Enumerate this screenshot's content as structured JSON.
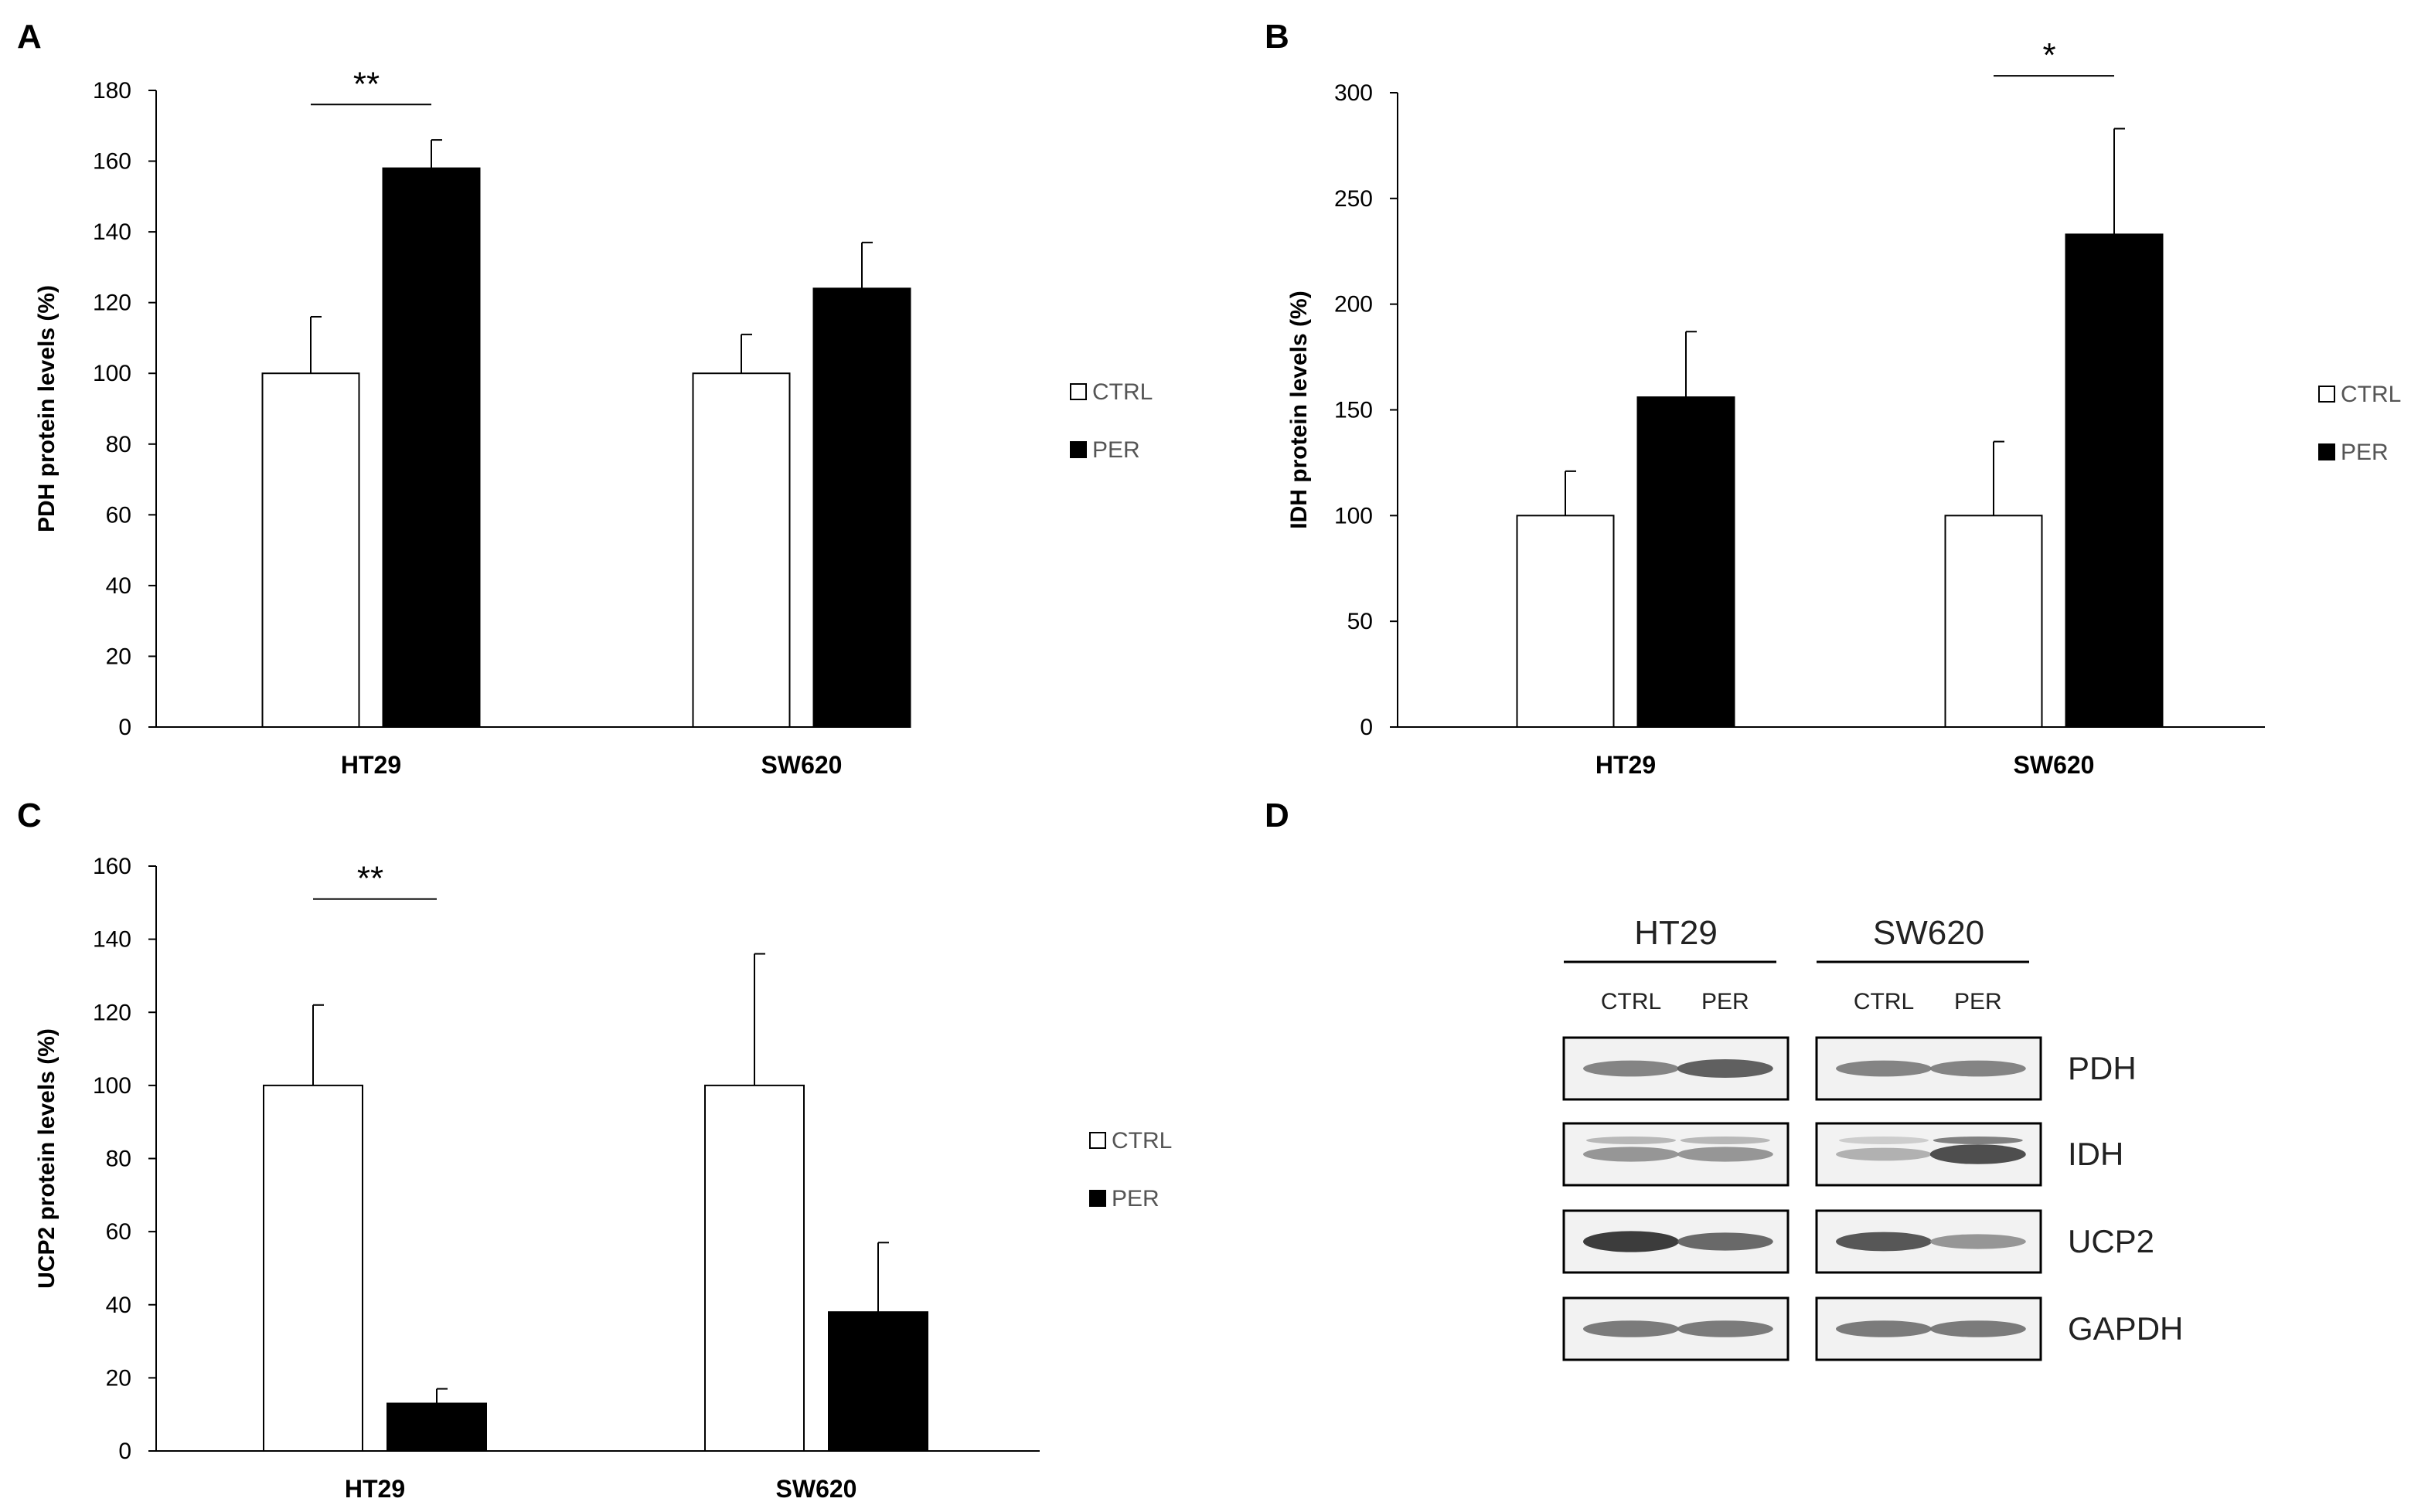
{
  "panels": {
    "A": "A",
    "B": "B",
    "C": "C",
    "D": "D"
  },
  "legend": {
    "ctrl": "CTRL",
    "per": "PER"
  },
  "chart_data": [
    {
      "id": "A",
      "type": "bar",
      "categories": [
        "HT29",
        "SW620"
      ],
      "series": [
        {
          "name": "CTRL",
          "values": [
            100,
            100
          ],
          "errors": [
            16,
            11
          ],
          "color": "#ffffff"
        },
        {
          "name": "PER",
          "values": [
            158,
            124
          ],
          "errors": [
            8,
            13
          ],
          "color": "#000000"
        }
      ],
      "ylabel": "PDH protein levels (%)",
      "ylim": [
        0,
        180
      ],
      "yticks": [
        0,
        20,
        40,
        60,
        80,
        100,
        120,
        140,
        160,
        180
      ],
      "significance": [
        {
          "category": "HT29",
          "label": "**",
          "at": 176
        }
      ]
    },
    {
      "id": "B",
      "type": "bar",
      "categories": [
        "HT29",
        "SW620"
      ],
      "series": [
        {
          "name": "CTRL",
          "values": [
            100,
            100
          ],
          "errors": [
            21,
            35
          ],
          "color": "#ffffff"
        },
        {
          "name": "PER",
          "values": [
            156,
            233
          ],
          "errors": [
            31,
            50
          ],
          "color": "#000000"
        }
      ],
      "ylabel": "IDH protein levels (%)",
      "ylim": [
        0,
        300
      ],
      "yticks": [
        0,
        50,
        100,
        150,
        200,
        250,
        300
      ],
      "significance": [
        {
          "category": "SW620",
          "label": "*",
          "at": 308
        }
      ]
    },
    {
      "id": "C",
      "type": "bar",
      "categories": [
        "HT29",
        "SW620"
      ],
      "series": [
        {
          "name": "CTRL",
          "values": [
            100,
            100
          ],
          "errors": [
            22,
            36
          ],
          "color": "#ffffff"
        },
        {
          "name": "PER",
          "values": [
            13,
            38
          ],
          "errors": [
            4,
            19
          ],
          "color": "#000000"
        }
      ],
      "ylabel": "UCP2 protein levels (%)",
      "ylim": [
        0,
        160
      ],
      "yticks": [
        0,
        20,
        40,
        60,
        80,
        100,
        120,
        140,
        160
      ],
      "significance": [
        {
          "category": "HT29",
          "label": "**",
          "at": 151
        }
      ]
    }
  ],
  "blot": {
    "groups": [
      "HT29",
      "SW620"
    ],
    "lanes": [
      "CTRL",
      "PER",
      "CTRL",
      "PER"
    ],
    "proteins": [
      "PDH",
      "IDH",
      "UCP2",
      "GAPDH"
    ],
    "band_intensity": {
      "PDH": [
        0.55,
        0.75,
        0.55,
        0.55
      ],
      "IDH": [
        0.45,
        0.45,
        0.3,
        0.85
      ],
      "UCP2": [
        0.95,
        0.7,
        0.8,
        0.45
      ],
      "GAPDH": [
        0.6,
        0.6,
        0.6,
        0.6
      ]
    }
  }
}
